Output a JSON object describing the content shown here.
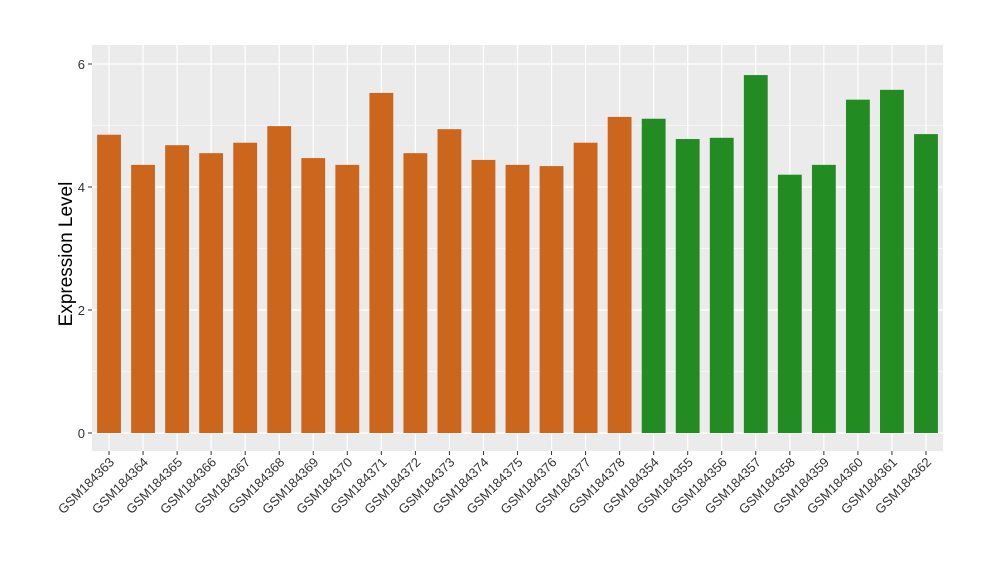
{
  "chart_data": {
    "type": "bar",
    "title": "",
    "xlabel": "",
    "ylabel": "Expression Level",
    "ylim": [
      -0.25,
      6.2
    ],
    "yticks": [
      0,
      2,
      4,
      6
    ],
    "grid": true,
    "categories": [
      "GSM184363",
      "GSM184364",
      "GSM184365",
      "GSM184366",
      "GSM184367",
      "GSM184368",
      "GSM184369",
      "GSM184370",
      "GSM184371",
      "GSM184372",
      "GSM184373",
      "GSM184374",
      "GSM184375",
      "GSM184376",
      "GSM184377",
      "GSM184378",
      "GSM184354",
      "GSM184355",
      "GSM184356",
      "GSM184357",
      "GSM184358",
      "GSM184359",
      "GSM184360",
      "GSM184361",
      "GSM184362"
    ],
    "values": [
      4.85,
      4.36,
      4.68,
      4.55,
      4.72,
      4.99,
      4.47,
      4.36,
      5.53,
      4.55,
      4.94,
      4.44,
      4.36,
      4.34,
      4.72,
      5.14,
      5.11,
      4.78,
      4.8,
      5.82,
      4.2,
      4.36,
      5.42,
      5.58,
      4.86
    ],
    "groups": [
      0,
      0,
      0,
      0,
      0,
      0,
      0,
      0,
      0,
      0,
      0,
      0,
      0,
      0,
      0,
      0,
      1,
      1,
      1,
      1,
      1,
      1,
      1,
      1,
      1
    ],
    "group_colors": [
      "#cd661d",
      "#228b22"
    ],
    "panel_background": "#ebebeb"
  }
}
